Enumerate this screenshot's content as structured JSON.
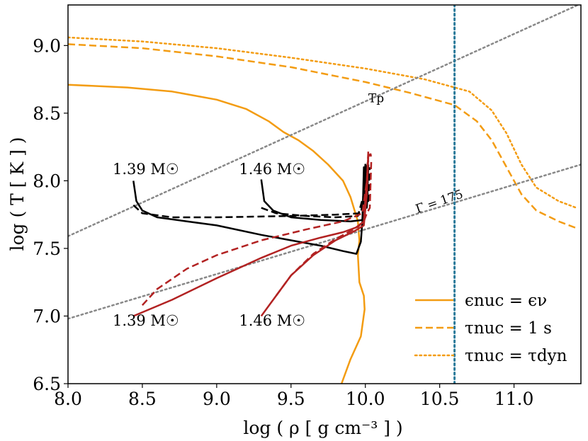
{
  "chart_data": {
    "type": "line",
    "xlabel": "log ( ρ [ g cm⁻³ ] )",
    "ylabel": "log ( T [ K ] )",
    "xlim": [
      8.0,
      11.45
    ],
    "ylim": [
      6.5,
      9.3
    ],
    "xticks": [
      8.0,
      8.5,
      9.0,
      9.5,
      10.0,
      10.5,
      11.0
    ],
    "xtick_labels": [
      "8.0",
      "8.5",
      "9.0",
      "9.5",
      "10.0",
      "10.5",
      "11.0"
    ],
    "yticks": [
      6.5,
      7.0,
      7.5,
      8.0,
      8.5,
      9.0
    ],
    "ytick_labels": [
      "6.5",
      "7.0",
      "7.5",
      "8.0",
      "8.5",
      "9.0"
    ],
    "grid": false,
    "legend_position": "bottom-right",
    "legend": [
      {
        "label": "ϵnuc = ϵν",
        "color": "#f39c12",
        "dash": "solid"
      },
      {
        "label": "τnuc = 1 s",
        "color": "#f39c12",
        "dash": "dashed"
      },
      {
        "label": "τnuc = τdyn",
        "color": "#f39c12",
        "dash": "dotted"
      }
    ],
    "annotations": [
      {
        "text": "1.39 M☉",
        "x": 8.3,
        "y": 8.05
      },
      {
        "text": "1.46 M☉",
        "x": 9.15,
        "y": 8.05
      },
      {
        "text": "1.39 M☉",
        "x": 8.3,
        "y": 6.93
      },
      {
        "text": "1.46 M☉",
        "x": 9.15,
        "y": 6.93
      },
      {
        "text": "Tp",
        "x": 10.02,
        "y": 8.58
      },
      {
        "text": "Γ = 175",
        "x": 10.35,
        "y": 7.76
      }
    ],
    "series": [
      {
        "style": "orange-solid",
        "color": "#f39c12",
        "dash": "solid",
        "width": 2.5,
        "points": [
          [
            8.0,
            8.71
          ],
          [
            8.4,
            8.69
          ],
          [
            8.7,
            8.66
          ],
          [
            9.0,
            8.6
          ],
          [
            9.2,
            8.53
          ],
          [
            9.35,
            8.44
          ],
          [
            9.45,
            8.36
          ],
          [
            9.55,
            8.3
          ],
          [
            9.65,
            8.22
          ],
          [
            9.75,
            8.12
          ],
          [
            9.85,
            8.0
          ],
          [
            9.9,
            7.88
          ],
          [
            9.95,
            7.7
          ],
          [
            9.96,
            7.56
          ],
          [
            9.95,
            7.45
          ],
          [
            9.96,
            7.25
          ],
          [
            9.99,
            7.15
          ],
          [
            9.995,
            7.05
          ],
          [
            9.97,
            6.85
          ],
          [
            9.9,
            6.68
          ],
          [
            9.84,
            6.5
          ]
        ]
      },
      {
        "style": "orange-dashed",
        "color": "#f39c12",
        "dash": "dashed",
        "width": 2.5,
        "points": [
          [
            8.0,
            9.01
          ],
          [
            8.5,
            8.98
          ],
          [
            9.0,
            8.92
          ],
          [
            9.5,
            8.84
          ],
          [
            10.0,
            8.73
          ],
          [
            10.3,
            8.65
          ],
          [
            10.6,
            8.56
          ],
          [
            10.75,
            8.44
          ],
          [
            10.85,
            8.3
          ],
          [
            10.95,
            8.1
          ],
          [
            11.05,
            7.9
          ],
          [
            11.15,
            7.78
          ],
          [
            11.3,
            7.7
          ],
          [
            11.42,
            7.65
          ]
        ]
      },
      {
        "style": "orange-dotted",
        "color": "#f39c12",
        "dash": "dotted",
        "width": 2.5,
        "points": [
          [
            8.0,
            9.06
          ],
          [
            8.5,
            9.03
          ],
          [
            9.0,
            8.98
          ],
          [
            9.5,
            8.91
          ],
          [
            10.0,
            8.83
          ],
          [
            10.4,
            8.75
          ],
          [
            10.7,
            8.66
          ],
          [
            10.85,
            8.52
          ],
          [
            10.95,
            8.35
          ],
          [
            11.05,
            8.12
          ],
          [
            11.15,
            7.95
          ],
          [
            11.3,
            7.85
          ],
          [
            11.42,
            7.8
          ]
        ]
      },
      {
        "style": "grey-dotted",
        "color": "#888888",
        "dash": "dotted",
        "width": 2.5,
        "points": [
          [
            8.0,
            7.59
          ],
          [
            11.45,
            9.31
          ]
        ]
      },
      {
        "style": "grey-dotted",
        "color": "#888888",
        "dash": "dotted",
        "width": 2.5,
        "points": [
          [
            8.0,
            6.98
          ],
          [
            11.45,
            8.12
          ]
        ]
      },
      {
        "style": "teal-vline",
        "color": "#2b7a9a",
        "dash": "dotted",
        "width": 3,
        "points": [
          [
            10.6,
            6.5
          ],
          [
            10.6,
            9.3
          ]
        ]
      },
      {
        "style": "black-solid-139",
        "color": "#000000",
        "dash": "solid",
        "width": 2.5,
        "points": [
          [
            8.44,
            8.0
          ],
          [
            8.46,
            7.85
          ],
          [
            8.5,
            7.78
          ],
          [
            8.6,
            7.73
          ],
          [
            8.8,
            7.7
          ],
          [
            9.0,
            7.67
          ],
          [
            9.3,
            7.6
          ],
          [
            9.5,
            7.56
          ],
          [
            9.7,
            7.52
          ],
          [
            9.85,
            7.48
          ],
          [
            9.94,
            7.46
          ],
          [
            9.97,
            7.55
          ],
          [
            9.98,
            7.7
          ],
          [
            9.985,
            7.9
          ],
          [
            9.99,
            8.1
          ],
          [
            10.0,
            7.8
          ],
          [
            10.01,
            8.1
          ],
          [
            10.02,
            8.15
          ]
        ]
      },
      {
        "style": "black-dashed-139",
        "color": "#000000",
        "dash": "dashed",
        "width": 2.5,
        "points": [
          [
            8.44,
            7.82
          ],
          [
            8.5,
            7.76
          ],
          [
            8.7,
            7.73
          ],
          [
            9.0,
            7.73
          ],
          [
            9.5,
            7.74
          ],
          [
            9.8,
            7.75
          ],
          [
            9.97,
            7.76
          ],
          [
            9.99,
            7.9
          ],
          [
            10.0,
            8.1
          ],
          [
            10.01,
            7.8
          ],
          [
            10.02,
            8.12
          ]
        ]
      },
      {
        "style": "black-solid-146",
        "color": "#000000",
        "dash": "solid",
        "width": 2.5,
        "points": [
          [
            9.3,
            8.01
          ],
          [
            9.32,
            7.85
          ],
          [
            9.38,
            7.78
          ],
          [
            9.5,
            7.73
          ],
          [
            9.7,
            7.71
          ],
          [
            9.9,
            7.7
          ],
          [
            9.98,
            7.71
          ],
          [
            9.99,
            7.9
          ],
          [
            10.0,
            8.12
          ],
          [
            10.01,
            7.8
          ],
          [
            10.02,
            8.12
          ]
        ]
      },
      {
        "style": "black-dashed-146",
        "color": "#000000",
        "dash": "dashed",
        "width": 2.5,
        "points": [
          [
            9.3,
            7.8
          ],
          [
            9.4,
            7.76
          ],
          [
            9.6,
            7.74
          ],
          [
            9.8,
            7.73
          ],
          [
            9.95,
            7.74
          ],
          [
            9.99,
            7.9
          ],
          [
            10.0,
            8.1
          ],
          [
            10.02,
            7.85
          ],
          [
            10.03,
            8.1
          ]
        ]
      },
      {
        "style": "red-solid-139",
        "color": "#b22222",
        "dash": "solid",
        "width": 2.5,
        "points": [
          [
            8.44,
            7.0
          ],
          [
            8.7,
            7.12
          ],
          [
            9.0,
            7.28
          ],
          [
            9.3,
            7.43
          ],
          [
            9.5,
            7.52
          ],
          [
            9.7,
            7.58
          ],
          [
            9.85,
            7.62
          ],
          [
            9.95,
            7.66
          ],
          [
            9.99,
            7.7
          ],
          [
            10.01,
            8.0
          ],
          [
            10.02,
            8.2
          ],
          [
            10.03,
            8.18
          ]
        ]
      },
      {
        "style": "red-dashed-139",
        "color": "#b22222",
        "dash": "dashed",
        "width": 2.5,
        "points": [
          [
            8.5,
            7.08
          ],
          [
            8.6,
            7.2
          ],
          [
            8.8,
            7.35
          ],
          [
            9.0,
            7.45
          ],
          [
            9.3,
            7.56
          ],
          [
            9.6,
            7.64
          ],
          [
            9.85,
            7.7
          ],
          [
            9.98,
            7.76
          ],
          [
            10.01,
            8.0
          ],
          [
            10.02,
            8.22
          ],
          [
            10.04,
            8.18
          ]
        ]
      },
      {
        "style": "red-solid-146",
        "color": "#b22222",
        "dash": "solid",
        "width": 2.5,
        "points": [
          [
            9.3,
            7.0
          ],
          [
            9.38,
            7.12
          ],
          [
            9.5,
            7.3
          ],
          [
            9.65,
            7.45
          ],
          [
            9.8,
            7.56
          ],
          [
            9.93,
            7.63
          ],
          [
            9.99,
            7.67
          ],
          [
            10.01,
            7.9
          ],
          [
            10.02,
            8.18
          ],
          [
            10.04,
            8.2
          ]
        ]
      },
      {
        "style": "red-dashed-146",
        "color": "#b22222",
        "dash": "dashed",
        "width": 2.5,
        "points": [
          [
            9.4,
            7.15
          ],
          [
            9.5,
            7.3
          ],
          [
            9.65,
            7.46
          ],
          [
            9.8,
            7.57
          ],
          [
            9.92,
            7.64
          ],
          [
            9.99,
            7.7
          ],
          [
            10.01,
            7.76
          ],
          [
            10.03,
            7.8
          ],
          [
            10.04,
            8.15
          ]
        ]
      }
    ]
  }
}
